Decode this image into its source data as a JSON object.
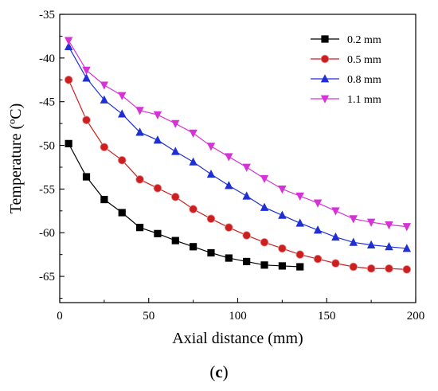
{
  "chart_data": {
    "type": "line",
    "xlabel": "Axial distance (mm)",
    "ylabel": "Temperature (ºC)",
    "xlim": [
      0,
      200
    ],
    "ylim": [
      -68,
      -35
    ],
    "xticks": [
      0,
      50,
      100,
      150,
      200
    ],
    "yticks": [
      -35,
      -40,
      -45,
      -50,
      -55,
      -60,
      -65
    ],
    "grid": false,
    "legend_position": "top-right",
    "series": [
      {
        "name": "0.2 mm",
        "color": "#000000",
        "marker": "square",
        "x": [
          5,
          15,
          25,
          35,
          45,
          55,
          65,
          75,
          85,
          95,
          105,
          115,
          125,
          135
        ],
        "y": [
          -49.8,
          -53.6,
          -56.2,
          -57.7,
          -59.4,
          -60.1,
          -60.9,
          -61.6,
          -62.3,
          -62.9,
          -63.3,
          -63.7,
          -63.8,
          -63.9
        ]
      },
      {
        "name": "0.5 mm",
        "color": "#cc1f1f",
        "marker": "circle",
        "x": [
          5,
          15,
          25,
          35,
          45,
          55,
          65,
          75,
          85,
          95,
          105,
          115,
          125,
          135,
          145,
          155,
          165,
          175,
          185,
          195
        ],
        "y": [
          -42.5,
          -47.1,
          -50.2,
          -51.7,
          -53.9,
          -54.9,
          -55.9,
          -57.3,
          -58.4,
          -59.4,
          -60.3,
          -61.1,
          -61.8,
          -62.5,
          -63.0,
          -63.5,
          -63.9,
          -64.1,
          -64.1,
          -64.2
        ]
      },
      {
        "name": "0.8 mm",
        "color": "#1f2fd6",
        "marker": "triangle-up",
        "x": [
          5,
          15,
          25,
          35,
          45,
          55,
          65,
          75,
          85,
          95,
          105,
          115,
          125,
          135,
          145,
          155,
          165,
          175,
          185,
          195
        ],
        "y": [
          -38.7,
          -42.3,
          -44.8,
          -46.4,
          -48.5,
          -49.4,
          -50.7,
          -51.9,
          -53.3,
          -54.6,
          -55.8,
          -57.1,
          -58.0,
          -58.9,
          -59.7,
          -60.5,
          -61.1,
          -61.4,
          -61.6,
          -61.8
        ]
      },
      {
        "name": "1.1 mm",
        "color": "#d633d6",
        "marker": "triangle-down",
        "x": [
          5,
          15,
          25,
          35,
          45,
          55,
          65,
          75,
          85,
          95,
          105,
          115,
          125,
          135,
          145,
          155,
          165,
          175,
          185,
          195
        ],
        "y": [
          -38.0,
          -41.4,
          -43.1,
          -44.3,
          -46.0,
          -46.5,
          -47.5,
          -48.6,
          -50.1,
          -51.3,
          -52.5,
          -53.8,
          -55.0,
          -55.8,
          -56.6,
          -57.5,
          -58.4,
          -58.8,
          -59.1,
          -59.3
        ]
      }
    ]
  },
  "panel_label_letter": "c"
}
